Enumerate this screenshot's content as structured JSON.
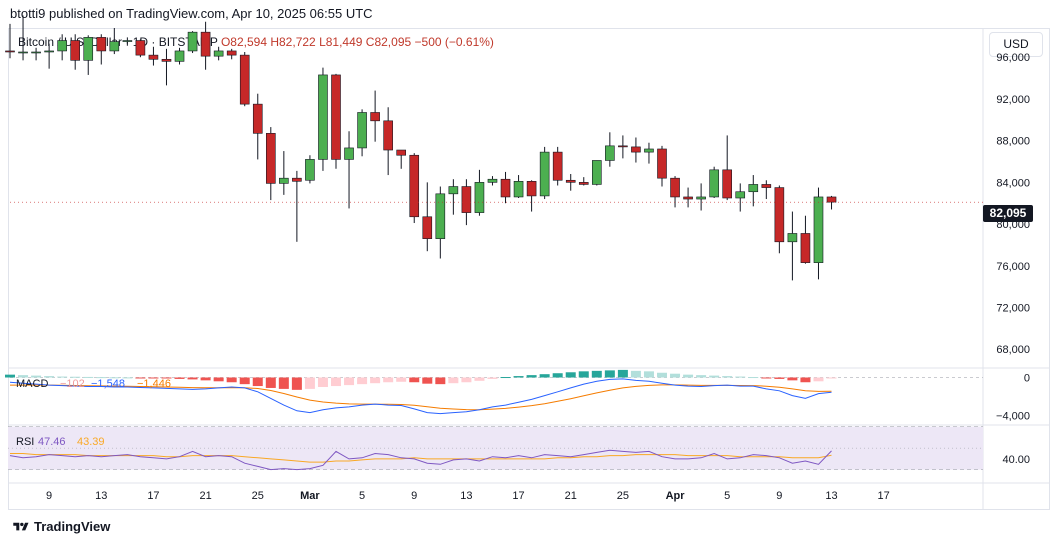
{
  "header": {
    "text": "btotti9 published on TradingView.com, Apr 10, 2025 06:55 UTC"
  },
  "symbol": {
    "name": "Bitcoin / U.S. Dollar · 1D · BITSTAMP",
    "open": "O82,594",
    "high": "H82,722",
    "low": "L81,449",
    "close": "C82,095",
    "change": "−500 (−0.61%)"
  },
  "currency_button": "USD",
  "last_price": "82,095",
  "macd": {
    "label": "MACD",
    "hist_value": "−102",
    "macd_value": "−1,548",
    "signal_value": "−1,446",
    "colors": {
      "macd": "#2962ff",
      "signal": "#f57c00",
      "pos_strong": "#26a69a",
      "pos_weak": "#b2dfdb",
      "neg_strong": "#ef5350",
      "neg_weak": "#ffcdd2"
    }
  },
  "rsi": {
    "label": "RSI",
    "rsi_value": "47.46",
    "ma_value": "43.39",
    "colors": {
      "rsi": "#7e57c2",
      "ma": "#f9a825",
      "band": "#ede7f6"
    }
  },
  "footer": {
    "brand": "TradingView"
  },
  "chart_data": {
    "type": "candlestick",
    "title": "Bitcoin / U.S. Dollar · 1D · BITSTAMP",
    "colors": {
      "up": "#4caf50",
      "down": "#c62828",
      "wick": "#131722"
    },
    "price_axis": {
      "ticks": [
        "96,000",
        "92,000",
        "88,000",
        "84,000",
        "80,000",
        "76,000",
        "72,000",
        "68,000"
      ],
      "ylim": [
        66200,
        98800
      ]
    },
    "time_axis": {
      "ticks": [
        "9",
        "13",
        "17",
        "21",
        "25",
        "Mar",
        "5",
        "9",
        "13",
        "17",
        "21",
        "25",
        "Apr",
        "5",
        "9",
        "13",
        "17"
      ]
    },
    "candles": [
      {
        "date": "Feb 6",
        "o": 96600,
        "h": 99200,
        "l": 95900,
        "c": 96500
      },
      {
        "date": "Feb 7",
        "o": 96500,
        "h": 100000,
        "l": 95700,
        "c": 96500
      },
      {
        "date": "Feb 8",
        "o": 96500,
        "h": 96900,
        "l": 95700,
        "c": 96500
      },
      {
        "date": "Feb 9",
        "o": 96500,
        "h": 97300,
        "l": 94900,
        "c": 96600
      },
      {
        "date": "Feb 10",
        "o": 96600,
        "h": 98200,
        "l": 95700,
        "c": 97600
      },
      {
        "date": "Feb 11",
        "o": 97600,
        "h": 98200,
        "l": 94800,
        "c": 95700
      },
      {
        "date": "Feb 12",
        "o": 95700,
        "h": 98100,
        "l": 94300,
        "c": 97900
      },
      {
        "date": "Feb 13",
        "o": 97900,
        "h": 98200,
        "l": 95300,
        "c": 96600
      },
      {
        "date": "Feb 14",
        "o": 96600,
        "h": 98800,
        "l": 96300,
        "c": 97500
      },
      {
        "date": "Feb 15",
        "o": 97500,
        "h": 97900,
        "l": 97100,
        "c": 97600
      },
      {
        "date": "Feb 16",
        "o": 97600,
        "h": 97700,
        "l": 96000,
        "c": 96200
      },
      {
        "date": "Feb 17",
        "o": 96200,
        "h": 97000,
        "l": 95200,
        "c": 95800
      },
      {
        "date": "Feb 18",
        "o": 95800,
        "h": 96800,
        "l": 93300,
        "c": 95600
      },
      {
        "date": "Feb 19",
        "o": 95600,
        "h": 96900,
        "l": 95300,
        "c": 96600
      },
      {
        "date": "Feb 20",
        "o": 96600,
        "h": 98500,
        "l": 96400,
        "c": 98400
      },
      {
        "date": "Feb 21",
        "o": 98400,
        "h": 99400,
        "l": 94800,
        "c": 96100
      },
      {
        "date": "Feb 22",
        "o": 96100,
        "h": 97000,
        "l": 95700,
        "c": 96600
      },
      {
        "date": "Feb 23",
        "o": 96600,
        "h": 96800,
        "l": 95800,
        "c": 96200
      },
      {
        "date": "Feb 24",
        "o": 96200,
        "h": 96500,
        "l": 91300,
        "c": 91500
      },
      {
        "date": "Feb 25",
        "o": 91500,
        "h": 92500,
        "l": 86200,
        "c": 88700
      },
      {
        "date": "Feb 26",
        "o": 88700,
        "h": 89300,
        "l": 82300,
        "c": 83900
      },
      {
        "date": "Feb 27",
        "o": 83900,
        "h": 87000,
        "l": 82800,
        "c": 84400
      },
      {
        "date": "Feb 28",
        "o": 84400,
        "h": 85100,
        "l": 78300,
        "c": 84100
      },
      {
        "date": "Mar 1",
        "o": 84200,
        "h": 86600,
        "l": 83900,
        "c": 86200
      },
      {
        "date": "Mar 2",
        "o": 86200,
        "h": 95000,
        "l": 85100,
        "c": 94300
      },
      {
        "date": "Mar 3",
        "o": 94300,
        "h": 94400,
        "l": 85300,
        "c": 86200
      },
      {
        "date": "Mar 4",
        "o": 86200,
        "h": 88900,
        "l": 81500,
        "c": 87300
      },
      {
        "date": "Mar 5",
        "o": 87300,
        "h": 91000,
        "l": 86500,
        "c": 90700
      },
      {
        "date": "Mar 6",
        "o": 90700,
        "h": 92800,
        "l": 87900,
        "c": 89900
      },
      {
        "date": "Mar 7",
        "o": 89900,
        "h": 91200,
        "l": 84700,
        "c": 87100
      },
      {
        "date": "Mar 8",
        "o": 87100,
        "h": 87100,
        "l": 85300,
        "c": 86600
      },
      {
        "date": "Mar 9",
        "o": 86600,
        "h": 86800,
        "l": 80100,
        "c": 80700
      },
      {
        "date": "Mar 10",
        "o": 80700,
        "h": 84000,
        "l": 77400,
        "c": 78600
      },
      {
        "date": "Mar 11",
        "o": 78600,
        "h": 83600,
        "l": 76700,
        "c": 82900
      },
      {
        "date": "Mar 12",
        "o": 82900,
        "h": 84300,
        "l": 80900,
        "c": 83600
      },
      {
        "date": "Mar 13",
        "o": 83600,
        "h": 84300,
        "l": 79900,
        "c": 81100
      },
      {
        "date": "Mar 14",
        "o": 81100,
        "h": 85200,
        "l": 80800,
        "c": 84000
      },
      {
        "date": "Mar 15",
        "o": 84000,
        "h": 84600,
        "l": 83700,
        "c": 84300
      },
      {
        "date": "Mar 16",
        "o": 84300,
        "h": 85000,
        "l": 82000,
        "c": 82600
      },
      {
        "date": "Mar 17",
        "o": 82600,
        "h": 84700,
        "l": 82500,
        "c": 84100
      },
      {
        "date": "Mar 18",
        "o": 84100,
        "h": 84200,
        "l": 81200,
        "c": 82700
      },
      {
        "date": "Mar 19",
        "o": 82700,
        "h": 87400,
        "l": 82400,
        "c": 86900
      },
      {
        "date": "Mar 20",
        "o": 86900,
        "h": 87400,
        "l": 83700,
        "c": 84200
      },
      {
        "date": "Mar 21",
        "o": 84200,
        "h": 84800,
        "l": 83200,
        "c": 84000
      },
      {
        "date": "Mar 22",
        "o": 84000,
        "h": 84500,
        "l": 83700,
        "c": 83800
      },
      {
        "date": "Mar 23",
        "o": 83800,
        "h": 86100,
        "l": 83700,
        "c": 86100
      },
      {
        "date": "Mar 24",
        "o": 86100,
        "h": 88800,
        "l": 85500,
        "c": 87500
      },
      {
        "date": "Mar 25",
        "o": 87500,
        "h": 88500,
        "l": 86300,
        "c": 87400
      },
      {
        "date": "Mar 26",
        "o": 87400,
        "h": 88300,
        "l": 85900,
        "c": 86900
      },
      {
        "date": "Mar 27",
        "o": 86900,
        "h": 87800,
        "l": 85800,
        "c": 87200
      },
      {
        "date": "Mar 28",
        "o": 87200,
        "h": 87500,
        "l": 83600,
        "c": 84400
      },
      {
        "date": "Mar 29",
        "o": 84400,
        "h": 84600,
        "l": 81600,
        "c": 82600
      },
      {
        "date": "Mar 30",
        "o": 82600,
        "h": 83500,
        "l": 81600,
        "c": 82400
      },
      {
        "date": "Mar 31",
        "o": 82400,
        "h": 83900,
        "l": 81300,
        "c": 82600
      },
      {
        "date": "Apr 1",
        "o": 82600,
        "h": 85500,
        "l": 82500,
        "c": 85200
      },
      {
        "date": "Apr 2",
        "o": 85200,
        "h": 88500,
        "l": 82300,
        "c": 82500
      },
      {
        "date": "Apr 3",
        "o": 82500,
        "h": 83900,
        "l": 81200,
        "c": 83100
      },
      {
        "date": "Apr 4",
        "o": 83100,
        "h": 84700,
        "l": 81700,
        "c": 83800
      },
      {
        "date": "Apr 5",
        "o": 83800,
        "h": 84200,
        "l": 82400,
        "c": 83500
      },
      {
        "date": "Apr 6",
        "o": 83500,
        "h": 83700,
        "l": 77200,
        "c": 78300
      },
      {
        "date": "Apr 7",
        "o": 78300,
        "h": 81200,
        "l": 74600,
        "c": 79100
      },
      {
        "date": "Apr 8",
        "o": 79100,
        "h": 80800,
        "l": 76200,
        "c": 76300
      },
      {
        "date": "Apr 9",
        "o": 76300,
        "h": 83500,
        "l": 74700,
        "c": 82600
      },
      {
        "date": "Apr 10",
        "o": 82600,
        "h": 82700,
        "l": 81400,
        "c": 82100
      }
    ],
    "macd_histogram": [
      300,
      250,
      200,
      150,
      100,
      80,
      60,
      40,
      20,
      10,
      -20,
      -60,
      -100,
      -150,
      -200,
      -300,
      -400,
      -500,
      -700,
      -900,
      -1100,
      -1200,
      -1300,
      -1200,
      -1000,
      -900,
      -800,
      -700,
      -600,
      -500,
      -450,
      -500,
      -650,
      -700,
      -600,
      -500,
      -350,
      -150,
      50,
      150,
      250,
      350,
      450,
      550,
      650,
      700,
      750,
      800,
      700,
      650,
      500,
      400,
      300,
      250,
      200,
      150,
      100,
      50,
      -50,
      -150,
      -300,
      -500,
      -400,
      -102
    ],
    "macd_line": [
      -500,
      -600,
      -700,
      -800,
      -850,
      -900,
      -950,
      -950,
      -1000,
      -1000,
      -1050,
      -1100,
      -1150,
      -1200,
      -1250,
      -1200,
      -1100,
      -1000,
      -1100,
      -1500,
      -2200,
      -2900,
      -3500,
      -3700,
      -3400,
      -3200,
      -3100,
      -2900,
      -2800,
      -2900,
      -2950,
      -3300,
      -3700,
      -3800,
      -3700,
      -3600,
      -3400,
      -3100,
      -2900,
      -2600,
      -2300,
      -1900,
      -1500,
      -1100,
      -700,
      -400,
      -200,
      -150,
      -300,
      -400,
      -600,
      -800,
      -900,
      -950,
      -850,
      -800,
      -900,
      -900,
      -1200,
      -1400,
      -1900,
      -2200,
      -1700,
      -1548
    ],
    "signal_line": [
      -800,
      -800,
      -800,
      -800,
      -820,
      -840,
      -860,
      -880,
      -900,
      -920,
      -950,
      -980,
      -1000,
      -1030,
      -1060,
      -1080,
      -1080,
      -1070,
      -1080,
      -1160,
      -1370,
      -1680,
      -2050,
      -2380,
      -2580,
      -2700,
      -2780,
      -2800,
      -2800,
      -2820,
      -2840,
      -2930,
      -3080,
      -3230,
      -3320,
      -3380,
      -3390,
      -3330,
      -3250,
      -3120,
      -2960,
      -2760,
      -2510,
      -2230,
      -1930,
      -1620,
      -1340,
      -1100,
      -940,
      -830,
      -780,
      -780,
      -800,
      -830,
      -830,
      -830,
      -840,
      -850,
      -920,
      -1020,
      -1200,
      -1400,
      -1460,
      -1446
    ],
    "macd_axis": {
      "ticks": [
        "0",
        "−4,000"
      ],
      "ylim": [
        -5000,
        1000
      ]
    },
    "rsi_line": [
      43,
      41,
      42,
      44,
      43,
      42,
      43,
      42,
      43,
      44,
      42,
      41,
      40,
      42,
      47,
      42,
      43,
      42,
      36,
      33,
      30,
      31,
      30,
      31,
      34,
      47,
      40,
      41,
      45,
      44,
      41,
      40,
      36,
      35,
      39,
      40,
      38,
      42,
      41,
      43,
      41,
      44,
      43,
      42,
      44,
      46,
      48,
      47,
      46,
      47,
      42,
      40,
      40,
      41,
      45,
      40,
      41,
      44,
      43,
      41,
      36,
      38,
      35,
      47.46
    ],
    "rsi_ma": [
      45,
      45,
      44,
      44,
      44,
      44,
      43,
      43,
      43,
      43,
      43,
      43,
      42,
      42,
      43,
      43,
      43,
      43,
      42,
      41,
      40,
      39,
      38,
      37,
      37,
      38,
      38,
      39,
      40,
      40,
      40,
      41,
      40,
      40,
      40,
      40,
      40,
      40,
      40,
      40,
      40,
      40,
      41,
      41,
      42,
      42,
      43,
      43,
      44,
      44,
      44,
      44,
      43,
      43,
      43,
      43,
      42,
      42,
      42,
      42,
      41,
      41,
      41,
      43.39
    ],
    "rsi_axis": {
      "ticks": [
        "40.00"
      ],
      "ylim": [
        25,
        65
      ],
      "bands": [
        30,
        70
      ]
    }
  }
}
